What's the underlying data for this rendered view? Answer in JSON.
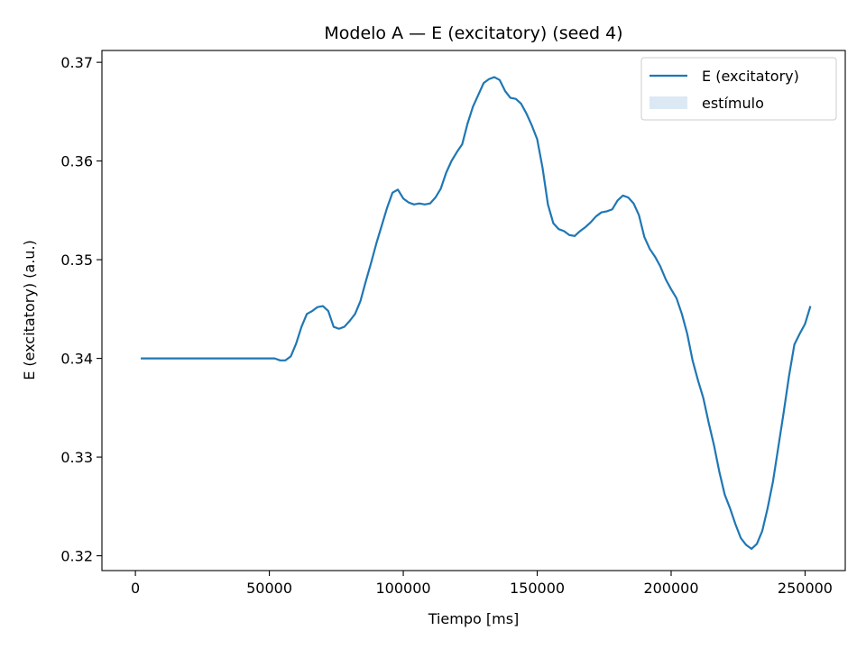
{
  "chart_data": {
    "type": "line",
    "title": "Modelo A — E (excitatory) (seed 4)",
    "xlabel": "Tiempo [ms]",
    "ylabel": "E (excitatory) (a.u.)",
    "xlim": [
      -12500,
      265000
    ],
    "ylim": [
      0.3185,
      0.3712
    ],
    "xticks": [
      0,
      50000,
      100000,
      150000,
      200000,
      250000
    ],
    "xtick_labels": [
      "0",
      "50000",
      "100000",
      "150000",
      "200000",
      "250000"
    ],
    "yticks": [
      0.32,
      0.33,
      0.34,
      0.35,
      0.36,
      0.37
    ],
    "ytick_labels": [
      "0.32",
      "0.33",
      "0.34",
      "0.35",
      "0.36",
      "0.37"
    ],
    "grid": false,
    "legend_placement": "top-right",
    "legend": [
      {
        "label": "E (excitatory)",
        "kind": "line",
        "color": "#1f77b4"
      },
      {
        "label": "estímulo",
        "kind": "patch",
        "color": "#dce9f4"
      }
    ],
    "series": [
      {
        "name": "E (excitatory)",
        "color": "#1f77b4",
        "x": [
          2000,
          20000,
          40000,
          52000,
          54000,
          56000,
          58000,
          60000,
          62000,
          64000,
          66000,
          68000,
          70000,
          72000,
          74000,
          76000,
          78000,
          80000,
          82000,
          84000,
          86000,
          88000,
          90000,
          92000,
          94000,
          96000,
          98000,
          100000,
          102000,
          104000,
          106000,
          108000,
          110000,
          112000,
          114000,
          116000,
          118000,
          120000,
          122000,
          124000,
          126000,
          128000,
          130000,
          132000,
          134000,
          136000,
          138000,
          140000,
          142000,
          144000,
          146000,
          148000,
          150000,
          152000,
          154000,
          156000,
          158000,
          160000,
          162000,
          164000,
          166000,
          168000,
          170000,
          172000,
          174000,
          176000,
          178000,
          180000,
          182000,
          184000,
          186000,
          188000,
          190000,
          192000,
          194000,
          196000,
          198000,
          200000,
          202000,
          204000,
          206000,
          208000,
          210000,
          212000,
          214000,
          216000,
          218000,
          220000,
          222000,
          224000,
          226000,
          228000,
          230000,
          232000,
          234000,
          236000,
          238000,
          240000,
          242000,
          244000,
          246000,
          248000,
          250000,
          252000
        ],
        "y": [
          0.34,
          0.34,
          0.34,
          0.34,
          0.3398,
          0.3398,
          0.3402,
          0.3415,
          0.3432,
          0.3445,
          0.3448,
          0.3452,
          0.3453,
          0.3448,
          0.3432,
          0.343,
          0.3432,
          0.3438,
          0.3445,
          0.3458,
          0.3478,
          0.3497,
          0.3517,
          0.3535,
          0.3553,
          0.3568,
          0.3571,
          0.3562,
          0.3558,
          0.3556,
          0.3557,
          0.3556,
          0.3557,
          0.3563,
          0.3572,
          0.3588,
          0.36,
          0.3609,
          0.3617,
          0.3638,
          0.3655,
          0.3667,
          0.3679,
          0.3683,
          0.3685,
          0.3682,
          0.3671,
          0.3664,
          0.3663,
          0.3658,
          0.3648,
          0.3636,
          0.3622,
          0.3593,
          0.3556,
          0.3537,
          0.3531,
          0.3529,
          0.3525,
          0.3524,
          0.3529,
          0.3533,
          0.3538,
          0.3544,
          0.3548,
          0.3549,
          0.3551,
          0.356,
          0.3565,
          0.3563,
          0.3557,
          0.3545,
          0.3523,
          0.3511,
          0.3503,
          0.3493,
          0.348,
          0.347,
          0.3461,
          0.3445,
          0.3425,
          0.3398,
          0.3378,
          0.336,
          0.3335,
          0.3312,
          0.3285,
          0.3262,
          0.3248,
          0.3232,
          0.3218,
          0.3211,
          0.3207,
          0.3212,
          0.3225,
          0.3248,
          0.3275,
          0.331,
          0.3345,
          0.3382,
          0.3414,
          0.3425,
          0.3435,
          0.3453
        ]
      }
    ]
  }
}
